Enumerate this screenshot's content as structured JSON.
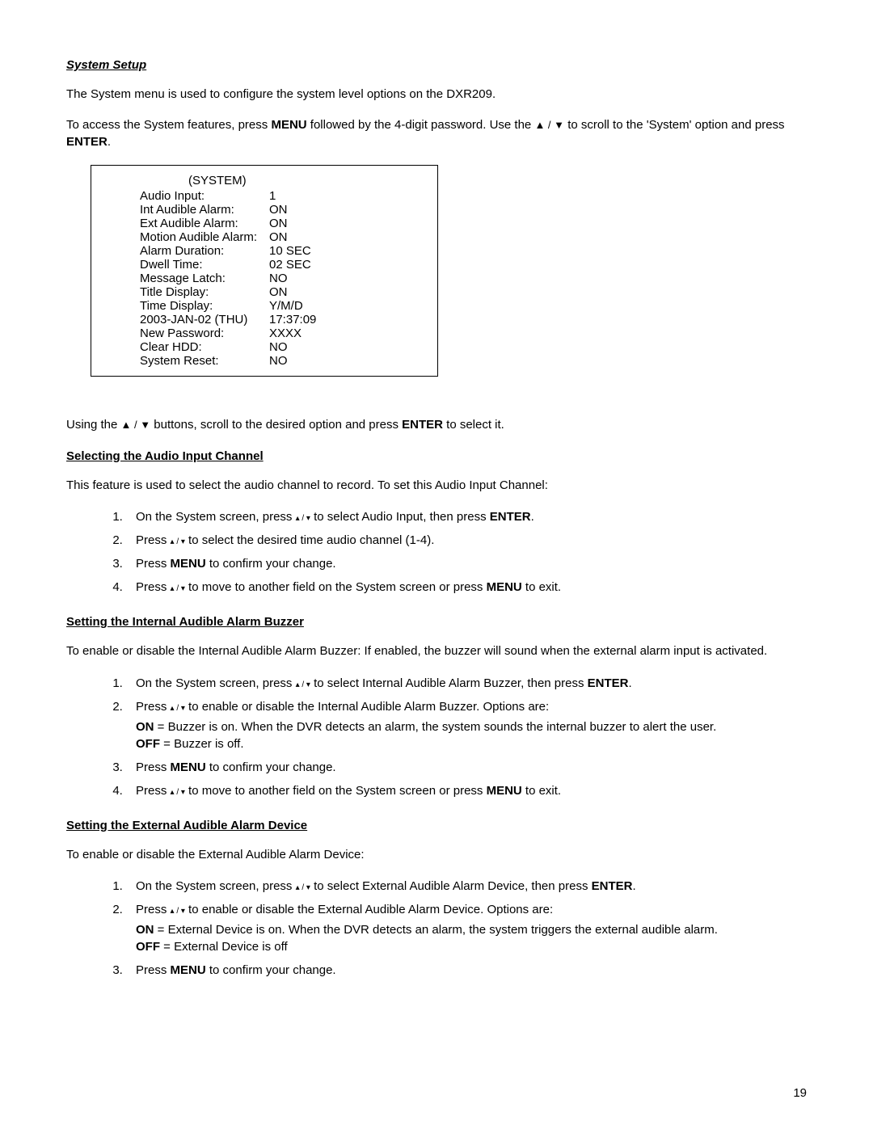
{
  "title": "System Setup",
  "intro1": "The System menu is used to configure the system level options on the DXR209.",
  "intro2_a": "To access the System features, press ",
  "intro2_menu": "MENU",
  "intro2_b": " followed by the 4-digit password. Use the ",
  "intro2_arrows": "▲ / ▼",
  "intro2_c": " to scroll to the 'System' option and press ",
  "intro2_enter": "ENTER",
  "intro2_d": ".",
  "menu": {
    "header": "(SYSTEM)",
    "rows": [
      {
        "label": "Audio Input:",
        "value": "1"
      },
      {
        "label": "Int Audible Alarm:",
        "value": "ON"
      },
      {
        "label": "Ext Audible Alarm:",
        "value": "ON"
      },
      {
        "label": "Motion Audible Alarm:",
        "value": "ON"
      },
      {
        "label": "Alarm Duration:",
        "value": "10 SEC"
      },
      {
        "label": "Dwell Time:",
        "value": "02 SEC"
      },
      {
        "label": "Message Latch:",
        "value": "NO"
      },
      {
        "label": "Title Display:",
        "value": "ON"
      },
      {
        "label": "Time Display:",
        "value": "Y/M/D"
      },
      {
        "label": "2003-JAN-02 (THU)",
        "value": "17:37:09"
      },
      {
        "label": "New Password:",
        "value": "XXXX"
      },
      {
        "label": "Clear HDD:",
        "value": "NO"
      },
      {
        "label": "System Reset:",
        "value": "NO"
      }
    ]
  },
  "after_menu_a": "Using the ",
  "after_menu_arrows": "▲ / ▼",
  "after_menu_b": " buttons, scroll to the desired option and press ",
  "after_menu_enter": "ENTER",
  "after_menu_c": " to select it.",
  "sec1": {
    "heading": "Selecting the Audio Input Channel",
    "intro": "This feature is used to select the audio channel to record. To set this Audio Input Channel:",
    "steps": {
      "s1a": "On the System screen, press ",
      "s1arrows": "▴ / ▾",
      "s1b": " to select Audio Input, then press ",
      "s1enter": "ENTER",
      "s1c": ".",
      "s2a": "Press ",
      "s2arrows": "▴ / ▾",
      "s2b": " to select the desired time audio channel (1-4).",
      "s3a": "Press ",
      "s3menu": "MENU",
      "s3b": " to confirm your change.",
      "s4a": "Press ",
      "s4arrows": "▴ / ▾",
      "s4b": " to move to another field on the System screen or press ",
      "s4menu": "MENU",
      "s4c": " to exit."
    }
  },
  "sec2": {
    "heading": "Setting the Internal Audible Alarm Buzzer",
    "intro": "To enable or disable the Internal Audible Alarm Buzzer: If enabled, the buzzer will sound when the external alarm input is activated.",
    "steps": {
      "s1a": "On the System screen, press ",
      "s1arrows": "▴ / ▾",
      "s1b": " to select Internal Audible Alarm Buzzer, then press ",
      "s1enter": "ENTER",
      "s1c": ".",
      "s2a": "Press ",
      "s2arrows": "▴ / ▾",
      "s2b": " to enable or disable the Internal Audible Alarm Buzzer. Options are:",
      "s2on": "ON",
      "s2on_t": " = Buzzer is on. When the DVR detects an alarm, the system sounds the internal buzzer to alert the user.",
      "s2off": "OFF",
      "s2off_t": " = Buzzer is off.",
      "s3a": "Press ",
      "s3menu": "MENU",
      "s3b": " to confirm your change.",
      "s4a": "Press ",
      "s4arrows": "▴ / ▾",
      "s4b": " to move to another field on the System screen or press ",
      "s4menu": "MENU",
      "s4c": " to exit."
    }
  },
  "sec3": {
    "heading": "Setting the External Audible Alarm Device",
    "intro": "To enable or disable the External Audible Alarm Device:",
    "steps": {
      "s1a": "On the System screen, press ",
      "s1arrows": "▴ / ▾",
      "s1b": " to select External Audible Alarm Device, then press ",
      "s1enter": "ENTER",
      "s1c": ".",
      "s2a": "Press ",
      "s2arrows": "▴ / ▾",
      "s2b": " to enable or disable the External Audible Alarm Device. Options are:",
      "s2on": "ON",
      "s2on_t": " = External Device is on. When the DVR detects an alarm, the system triggers the external audible alarm.",
      "s2off": "OFF",
      "s2off_t": " = External Device is off",
      "s3a": "Press ",
      "s3menu": "MENU",
      "s3b": " to confirm your change."
    }
  },
  "page_number": "19"
}
